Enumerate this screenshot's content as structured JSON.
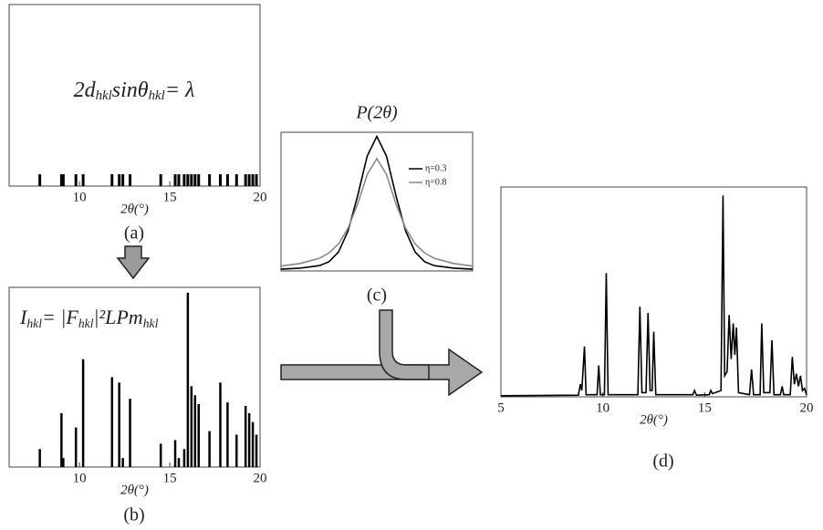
{
  "chart_data": [
    {
      "type": "rug",
      "label": "(a)",
      "xlabel": "2θ(°)",
      "annotation": [
        {
          "text": "2d"
        },
        {
          "text": "hkl",
          "sub": true
        },
        {
          "text": "sinθ"
        },
        {
          "text": "hkl",
          "sub": true
        },
        {
          "text": "= λ"
        }
      ],
      "x": [
        7.8,
        9.0,
        9.1,
        9.8,
        10.2,
        11.8,
        12.2,
        12.4,
        12.8,
        14.5,
        15.3,
        15.5,
        15.8,
        16.0,
        16.2,
        16.4,
        16.6,
        17.2,
        17.8,
        18.2,
        18.7,
        19.2,
        19.4,
        19.6,
        19.8
      ],
      "xlim": [
        6.1,
        20
      ],
      "xticks": [
        10,
        15,
        20
      ],
      "color": "#000000"
    },
    {
      "type": "stick",
      "label": "(b)",
      "xlabel": "2θ(°)",
      "annotation": [
        {
          "text": "I"
        },
        {
          "text": "hkl",
          "sub": true
        },
        {
          "text": "= |F"
        },
        {
          "text": "hkl",
          "sub": true
        },
        {
          "text": "|²LPm"
        },
        {
          "text": "hkl",
          "sub": true
        }
      ],
      "x": [
        7.8,
        9.0,
        9.1,
        9.8,
        10.2,
        11.8,
        12.2,
        12.4,
        12.8,
        14.5,
        15.3,
        15.5,
        15.8,
        16.0,
        16.2,
        16.4,
        16.6,
        17.2,
        17.8,
        18.2,
        18.7,
        19.2,
        19.4,
        19.6,
        19.8
      ],
      "values": [
        10,
        30,
        5,
        22,
        60,
        50,
        47,
        5,
        38,
        13,
        15,
        5,
        10,
        97,
        45,
        40,
        35,
        20,
        47,
        36,
        18,
        34,
        30,
        25,
        18
      ],
      "xlim": [
        6.1,
        20
      ],
      "ylim": [
        0,
        100
      ],
      "xticks": [
        10,
        15,
        20
      ],
      "color": "#000000"
    },
    {
      "type": "line",
      "label": "(c)",
      "title": "P(2θ)",
      "legend": "upper right",
      "x": [
        -5,
        -4,
        -3,
        -2.5,
        -2,
        -1.5,
        -1,
        -0.5,
        0,
        0.5,
        1,
        1.5,
        2,
        2.5,
        3,
        4,
        5
      ],
      "series": [
        {
          "name": "η=0.3",
          "color": "#000000",
          "values": [
            0.013,
            0.02,
            0.038,
            0.066,
            0.136,
            0.289,
            0.542,
            0.83,
            0.97,
            0.83,
            0.542,
            0.289,
            0.136,
            0.066,
            0.038,
            0.02,
            0.013
          ]
        },
        {
          "name": "η=0.8",
          "color": "#888888",
          "values": [
            0.035,
            0.054,
            0.091,
            0.129,
            0.195,
            0.308,
            0.483,
            0.696,
            0.81,
            0.696,
            0.483,
            0.308,
            0.195,
            0.129,
            0.091,
            0.054,
            0.035
          ]
        }
      ],
      "xlim": [
        -5,
        5
      ],
      "ylim": [
        0,
        1
      ]
    },
    {
      "type": "line",
      "label": "(d)",
      "xlabel": "2θ(°)",
      "x": [
        5,
        8.8,
        8.9,
        8.97,
        9.1,
        9.18,
        9.72,
        9.8,
        9.88,
        10.08,
        10.17,
        10.26,
        11.72,
        11.82,
        11.92,
        12.12,
        12.22,
        12.32,
        12.42,
        12.5,
        12.6,
        14.42,
        14.5,
        14.6,
        15.22,
        15.3,
        15.38,
        15.8,
        15.9,
        15.98,
        16.1,
        16.2,
        16.3,
        16.4,
        16.48,
        16.56,
        16.66,
        17.2,
        17.3,
        17.4,
        17.72,
        17.8,
        17.9,
        18.2,
        18.3,
        18.4,
        18.72,
        18.8,
        18.88,
        19.2,
        19.3,
        19.4,
        19.5,
        19.6,
        19.7,
        19.8,
        19.9,
        20
      ],
      "series": [
        {
          "color": "#000000",
          "values": [
            0.5,
            0.8,
            6,
            3,
            24,
            1,
            1,
            15,
            1,
            1,
            59,
            1,
            1,
            43,
            2,
            2,
            40,
            3,
            3,
            31,
            1,
            1,
            3,
            0.8,
            1,
            3,
            1.5,
            3,
            96,
            10,
            12,
            39,
            18,
            35,
            20,
            33,
            2,
            1,
            13,
            1,
            1,
            35,
            2,
            2,
            27,
            1,
            1,
            5,
            1,
            1,
            19,
            6,
            11,
            5,
            10,
            3,
            4,
            1
          ]
        }
      ],
      "xlim": [
        5,
        20
      ],
      "ylim": [
        0,
        100
      ],
      "xticks": [
        5,
        10,
        15,
        20
      ]
    }
  ]
}
